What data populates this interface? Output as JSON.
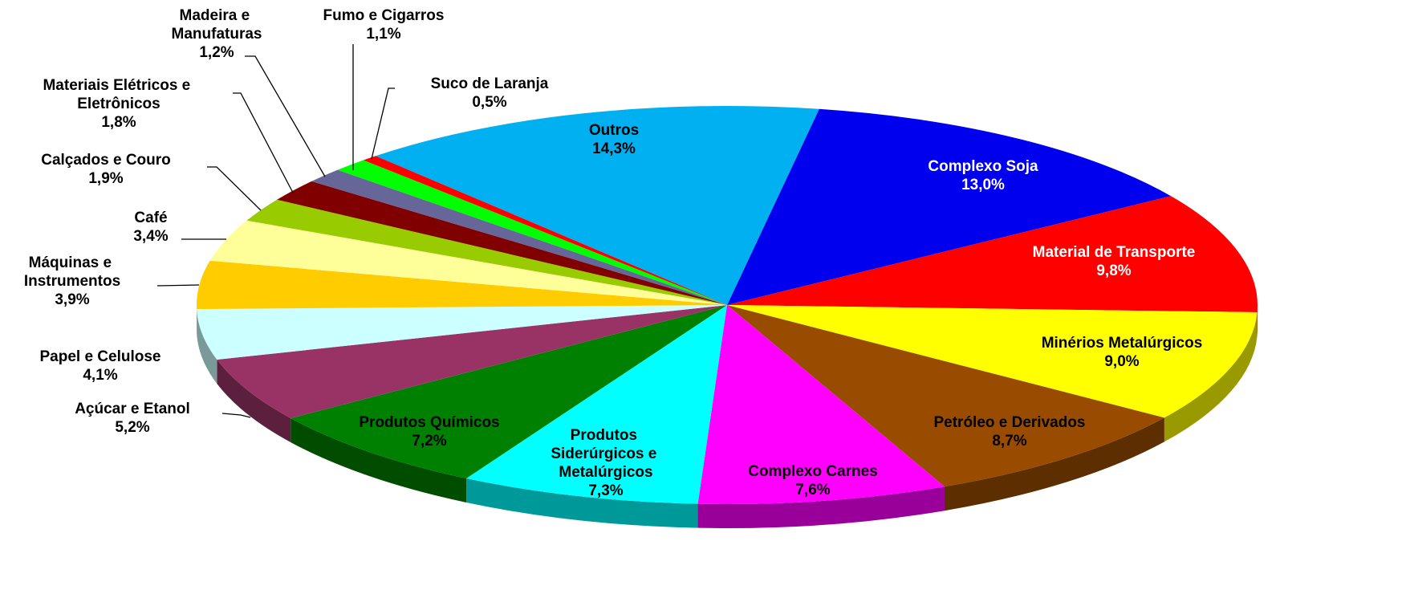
{
  "chart_data": {
    "type": "pie",
    "categories": [
      "Complexo Soja",
      "Material de Transporte",
      "Minérios Metalúrgicos",
      "Petróleo e Derivados",
      "Complexo Carnes",
      "Produtos Siderúrgicos e Metalúrgicos",
      "Produtos Químicos",
      "Açúcar e Etanol",
      "Papel e Celulose",
      "Máquinas e Instrumentos",
      "Café",
      "Calçados e Couro",
      "Materiais Elétricos e Eletrônicos",
      "Madeira e Manufaturas",
      "Fumo e Cigarros",
      "Suco de Laranja",
      "Outros"
    ],
    "values": [
      13.0,
      9.8,
      9.0,
      8.7,
      7.6,
      7.3,
      7.2,
      5.2,
      4.1,
      3.9,
      3.4,
      1.9,
      1.8,
      1.2,
      1.1,
      0.5,
      14.3
    ],
    "value_labels": [
      "13,0%",
      "9,8%",
      "9,0%",
      "8,7%",
      "7,6%",
      "7,3%",
      "7,2%",
      "5,2%",
      "4,1%",
      "3,9%",
      "3,4%",
      "1,9%",
      "1,8%",
      "1,2%",
      "1,1%",
      "0,5%",
      "14,3%"
    ],
    "colors": [
      "#0000ee",
      "#ff0000",
      "#ffff00",
      "#994c00",
      "#ff00ff",
      "#00ffff",
      "#008000",
      "#993366",
      "#ccffff",
      "#ffcc00",
      "#ffff99",
      "#99cc00",
      "#800000",
      "#666699",
      "#00ff00",
      "#ff0000",
      "#00b0f0"
    ]
  }
}
